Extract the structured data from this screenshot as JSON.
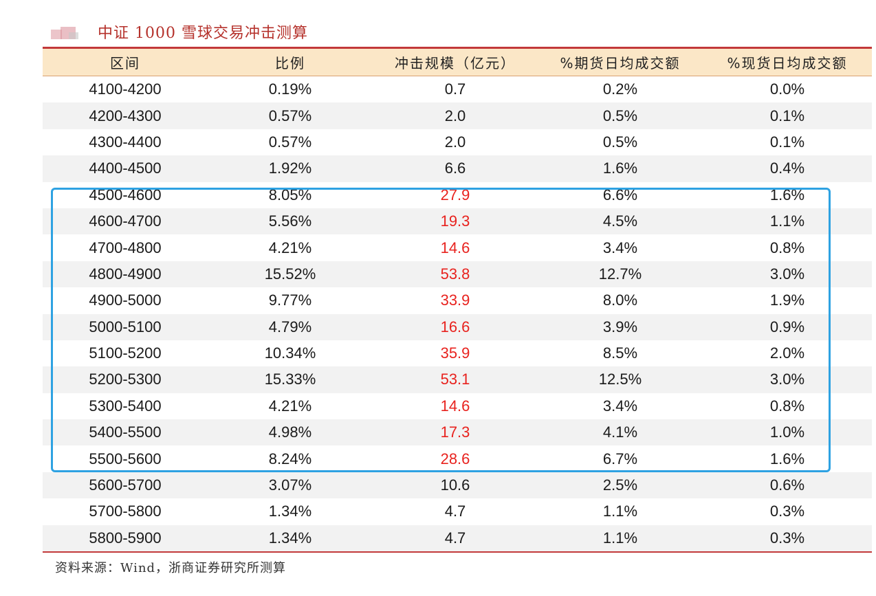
{
  "title": "中证 1000 雪球交易冲击测算",
  "table": {
    "headers": [
      "区间",
      "比例",
      "冲击规模（亿元）",
      "%期货日均成交额",
      "%现货日均成交额"
    ],
    "rows": [
      {
        "range": "4100-4200",
        "ratio": "0.19%",
        "impact": "0.7",
        "futures": "0.2%",
        "spot": "0.0%",
        "highlight": false
      },
      {
        "range": "4200-4300",
        "ratio": "0.57%",
        "impact": "2.0",
        "futures": "0.5%",
        "spot": "0.1%",
        "highlight": false
      },
      {
        "range": "4300-4400",
        "ratio": "0.57%",
        "impact": "2.0",
        "futures": "0.5%",
        "spot": "0.1%",
        "highlight": false
      },
      {
        "range": "4400-4500",
        "ratio": "1.92%",
        "impact": "6.6",
        "futures": "1.6%",
        "spot": "0.4%",
        "highlight": false
      },
      {
        "range": "4500-4600",
        "ratio": "8.05%",
        "impact": "27.9",
        "futures": "6.6%",
        "spot": "1.6%",
        "highlight": true
      },
      {
        "range": "4600-4700",
        "ratio": "5.56%",
        "impact": "19.3",
        "futures": "4.5%",
        "spot": "1.1%",
        "highlight": true
      },
      {
        "range": "4700-4800",
        "ratio": "4.21%",
        "impact": "14.6",
        "futures": "3.4%",
        "spot": "0.8%",
        "highlight": true
      },
      {
        "range": "4800-4900",
        "ratio": "15.52%",
        "impact": "53.8",
        "futures": "12.7%",
        "spot": "3.0%",
        "highlight": true
      },
      {
        "range": "4900-5000",
        "ratio": "9.77%",
        "impact": "33.9",
        "futures": "8.0%",
        "spot": "1.9%",
        "highlight": true
      },
      {
        "range": "5000-5100",
        "ratio": "4.79%",
        "impact": "16.6",
        "futures": "3.9%",
        "spot": "0.9%",
        "highlight": true
      },
      {
        "range": "5100-5200",
        "ratio": "10.34%",
        "impact": "35.9",
        "futures": "8.5%",
        "spot": "2.0%",
        "highlight": true
      },
      {
        "range": "5200-5300",
        "ratio": "15.33%",
        "impact": "53.1",
        "futures": "12.5%",
        "spot": "3.0%",
        "highlight": true
      },
      {
        "range": "5300-5400",
        "ratio": "4.21%",
        "impact": "14.6",
        "futures": "3.4%",
        "spot": "0.8%",
        "highlight": true
      },
      {
        "range": "5400-5500",
        "ratio": "4.98%",
        "impact": "17.3",
        "futures": "4.1%",
        "spot": "1.0%",
        "highlight": true
      },
      {
        "range": "5500-5600",
        "ratio": "8.24%",
        "impact": "28.6",
        "futures": "6.7%",
        "spot": "1.6%",
        "highlight": true
      },
      {
        "range": "5600-5700",
        "ratio": "3.07%",
        "impact": "10.6",
        "futures": "2.5%",
        "spot": "0.6%",
        "highlight": false
      },
      {
        "range": "5700-5800",
        "ratio": "1.34%",
        "impact": "4.7",
        "futures": "1.1%",
        "spot": "0.3%",
        "highlight": false
      },
      {
        "range": "5800-5900",
        "ratio": "1.34%",
        "impact": "4.7",
        "futures": "1.1%",
        "spot": "0.3%",
        "highlight": false
      }
    ]
  },
  "source": "资料来源：Wind，浙商证券研究所测算",
  "colors": {
    "accent_red": "#c2393a",
    "highlight_text": "#e8221e",
    "header_bg": "#fbe7c7",
    "shaded_row": "#f2f2f2",
    "box_border": "#2ea2e2"
  },
  "icons": {
    "logo": "brand-logo-icon"
  }
}
